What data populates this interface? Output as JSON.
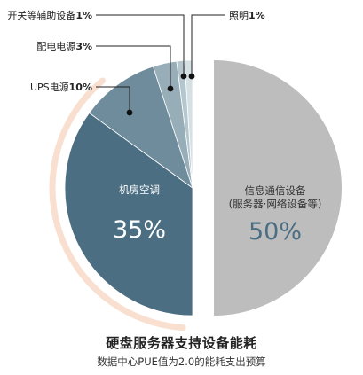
{
  "chart_data": {
    "type": "pie",
    "title": "硬盘服务器支持设备能耗",
    "subtitle": "数据中心PUE值为2.0的能耗支出预算",
    "slices": [
      {
        "label": "信息通信设备",
        "label2": "(服务器·网络设备等)",
        "percent_label": "50%",
        "value": 50,
        "color": "#bdbdbd"
      },
      {
        "label": "机房空调",
        "percent_label": "35%",
        "value": 35,
        "color": "#4b6e82"
      },
      {
        "label": "UPS电源",
        "value_label": "10%",
        "value": 10,
        "color": "#6f8c9c"
      },
      {
        "label": "配电电源",
        "value_label": "3%",
        "value": 3,
        "color": "#97aeb9"
      },
      {
        "label": "开关等辅助设备",
        "value_label": "1%",
        "value": 1,
        "color": "#b4c6ce"
      },
      {
        "label": "照明",
        "value_label": "1%",
        "value": 1,
        "color": "#d5e0e4"
      }
    ],
    "accent_ring_color": "#f7d9c7"
  }
}
